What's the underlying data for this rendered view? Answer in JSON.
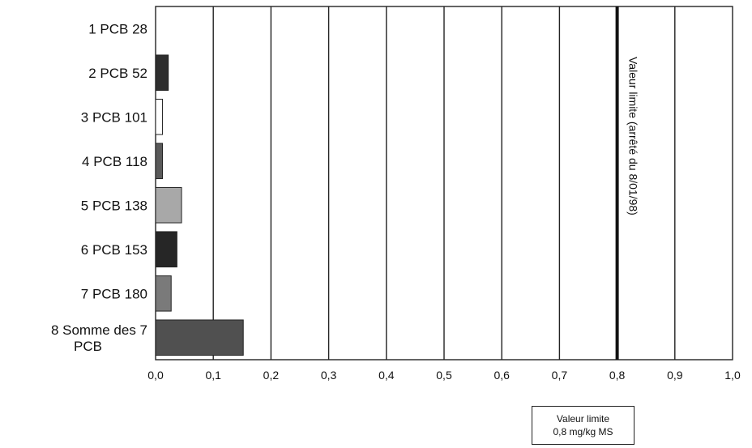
{
  "chart_data": {
    "type": "bar",
    "orientation": "horizontal",
    "categories": [
      "1 PCB 28",
      "2 PCB 52",
      "3 PCB 101",
      "4 PCB 118",
      "5 PCB 138",
      "6 PCB 153",
      "7 PCB 180",
      "8 Somme des 7 PCB"
    ],
    "values": [
      0.0,
      0.022,
      0.012,
      0.012,
      0.045,
      0.037,
      0.027,
      0.152
    ],
    "bar_colors": [
      "#555555",
      "#2e2e2e",
      "#ffffff",
      "#5a5a5a",
      "#a8a8a8",
      "#262626",
      "#7a7a7a",
      "#505050"
    ],
    "xlim": [
      0.0,
      1.0
    ],
    "x_ticks": [
      "0,0",
      "0,1",
      "0,2",
      "0,3",
      "0,4",
      "0,5",
      "0,6",
      "0,7",
      "0,8",
      "0,9",
      "1,0"
    ],
    "grid": "vertical",
    "reference_line": {
      "value": 0.8,
      "label": "Valeur limite (arrêté du 8/01/98)"
    },
    "note_box": {
      "line1": "Valeur limite",
      "line2": "0,8 mg/kg MS"
    }
  }
}
